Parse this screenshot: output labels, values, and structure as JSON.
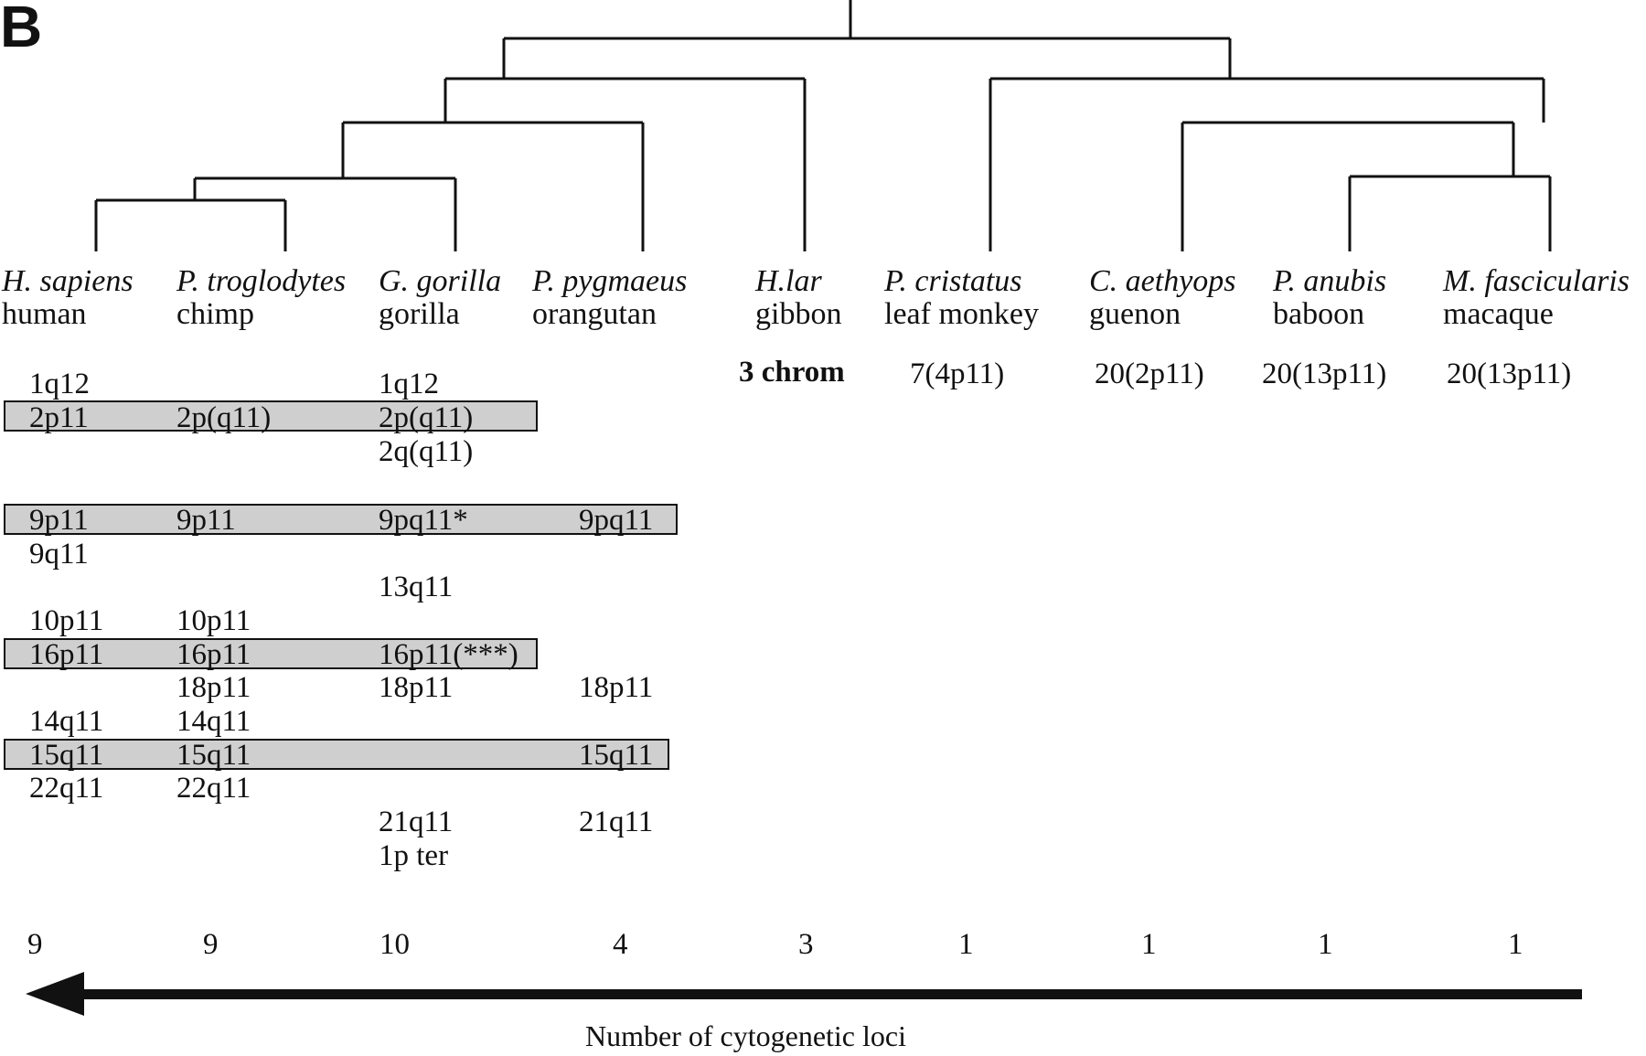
{
  "panel_label": "B",
  "species": [
    {
      "scientific": "H. sapiens",
      "common": "human"
    },
    {
      "scientific": "P. troglodytes",
      "common": "chimp"
    },
    {
      "scientific": "G. gorilla",
      "common": "gorilla"
    },
    {
      "scientific": "P. pygmaeus",
      "common": "orangutan"
    },
    {
      "scientific": "H.lar",
      "common": "gibbon"
    },
    {
      "scientific": "P. cristatus",
      "common": "leaf monkey"
    },
    {
      "scientific": "C. aethyops",
      "common": "guenon"
    },
    {
      "scientific": "P. anubis",
      "common": "baboon"
    },
    {
      "scientific": "M. fascicularis",
      "common": "macaque"
    }
  ],
  "loci": {
    "human": [
      "1q12",
      "2p11",
      "9p11",
      "9q11",
      "10p11",
      "16p11",
      "14q11",
      "15q11",
      "22q11"
    ],
    "chimp": [
      "2p(q11)",
      "9p11",
      "10p11",
      "16p11",
      "18p11",
      "14q11",
      "15q11",
      "22q11"
    ],
    "gorilla": [
      "1q12",
      "2p(q11)",
      "2q(q11)",
      "9pq11*",
      "13q11",
      "16p11(***)",
      "18p11",
      "21q11",
      "1p ter"
    ],
    "orangutan": [
      "9pq11",
      "18p11",
      "15q11",
      "21q11"
    ],
    "gibbon": [
      "3 chrom"
    ],
    "leaf_monkey": [
      "7(4p11)"
    ],
    "guenon": [
      "20(2p11)"
    ],
    "baboon": [
      "20(13p11)"
    ],
    "macaque": [
      "20(13p11)"
    ]
  },
  "counts": [
    "9",
    "9",
    "10",
    "4",
    "3",
    "1",
    "1",
    "1",
    "1"
  ],
  "axis_label": "Number of cytogenetic loci"
}
